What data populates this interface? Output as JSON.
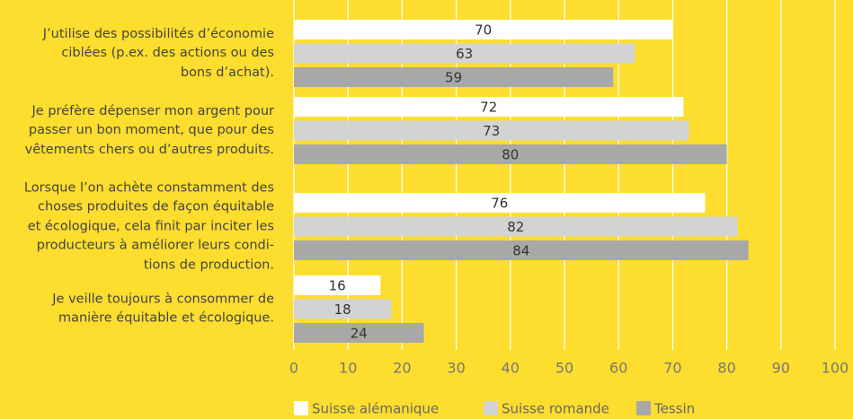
{
  "chart_data": {
    "type": "barh",
    "categories": [
      "J’utilise des possibilités d’économie\nciblées (p.ex. des actions ou des\nbons d’achat).",
      "Je préfère dépenser mon argent pour\npasser un bon moment, que pour des\nvêtements chers ou d’autres produits.",
      "Lorsque l’on achète constamment des\nchoses produites de façon équitable\net écologique, cela finit par inciter les\nproducteurs à améliorer leurs condi-\ntions de production.",
      "Je veille toujours à consommer de\nmanière équitable et écologique."
    ],
    "series": [
      {
        "name": "Suisse alémanique",
        "color": "#ffffff",
        "values": [
          70,
          72,
          76,
          16
        ]
      },
      {
        "name": "Suisse romande",
        "color": "#d3d3d3",
        "values": [
          63,
          73,
          82,
          18
        ]
      },
      {
        "name": "Tessin",
        "color": "#a8a8a8",
        "values": [
          59,
          80,
          84,
          24
        ]
      }
    ],
    "xlim": [
      0,
      100
    ],
    "xticks": [
      0,
      10,
      20,
      30,
      40,
      50,
      60,
      70,
      80,
      90,
      100
    ],
    "grid": true
  }
}
